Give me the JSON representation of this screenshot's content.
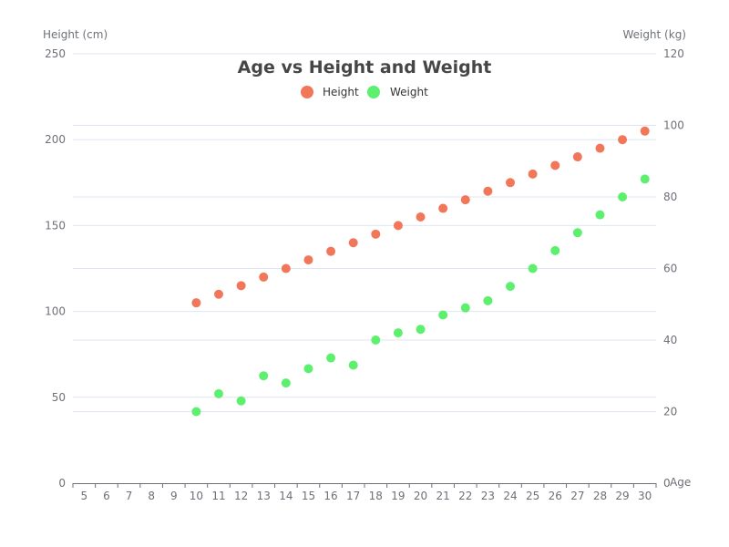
{
  "chart_data": {
    "type": "scatter",
    "title": "Age vs Height and Weight",
    "xlabel": "Age",
    "ylabel_left": "Height (cm)",
    "ylabel_right": "Weight (kg)",
    "xlim": [
      5,
      30
    ],
    "ylim_left": [
      0,
      250
    ],
    "ylim_right": [
      0,
      120
    ],
    "x_ticks": [
      5,
      6,
      7,
      8,
      9,
      10,
      11,
      12,
      13,
      14,
      15,
      16,
      17,
      18,
      19,
      20,
      21,
      22,
      23,
      24,
      25,
      26,
      27,
      28,
      29,
      30
    ],
    "y_ticks_left": [
      0,
      50,
      100,
      150,
      200,
      250
    ],
    "y_ticks_right": [
      0,
      20,
      40,
      60,
      80,
      100,
      120
    ],
    "grid": true,
    "legend_position": "top-center",
    "series": [
      {
        "name": "Height",
        "axis": "left",
        "color": "#f2775a",
        "x": [
          10,
          11,
          12,
          13,
          14,
          15,
          16,
          17,
          18,
          19,
          20,
          21,
          22,
          23,
          24,
          25,
          26,
          27,
          28,
          29,
          30
        ],
        "values": [
          105,
          110,
          115,
          120,
          125,
          130,
          135,
          140,
          145,
          150,
          155,
          160,
          165,
          170,
          175,
          180,
          185,
          190,
          195,
          200,
          205
        ]
      },
      {
        "name": "Weight",
        "axis": "right",
        "color": "#5cf06e",
        "x": [
          10,
          11,
          12,
          13,
          14,
          15,
          16,
          17,
          18,
          19,
          20,
          21,
          22,
          23,
          24,
          25,
          26,
          27,
          28,
          29,
          30
        ],
        "values": [
          20,
          25,
          23,
          30,
          28,
          32,
          35,
          33,
          40,
          42,
          43,
          47,
          49,
          51,
          55,
          60,
          65,
          70,
          75,
          80,
          85
        ]
      }
    ]
  }
}
